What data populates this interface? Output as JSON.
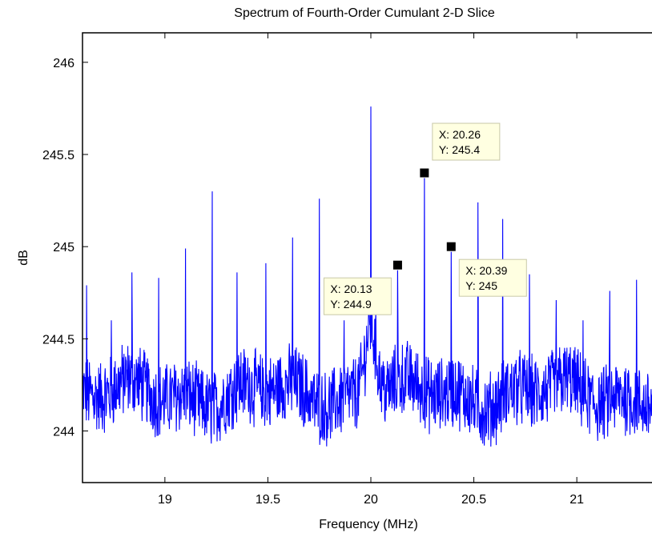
{
  "chart_data": {
    "type": "line",
    "title": "Spectrum of Fourth-Order Cumulant 2-D Slice",
    "xlabel": "Frequency (MHz)",
    "ylabel": "dB",
    "xlim": [
      18.6,
      21.4
    ],
    "ylim": [
      243.72,
      246.16
    ],
    "xticks": [
      19,
      19.5,
      20,
      20.5,
      21
    ],
    "yticks": [
      244,
      244.5,
      245,
      245.5,
      246
    ],
    "series": [
      {
        "color": "#0000ff",
        "baseline": 244.2,
        "noise_amplitude": 0.17,
        "center_bump": {
          "x": 20.0,
          "height": 0.4,
          "width": 0.04
        },
        "peaks": [
          {
            "x": 18.62,
            "y": 244.79
          },
          {
            "x": 18.74,
            "y": 244.6
          },
          {
            "x": 18.84,
            "y": 244.86
          },
          {
            "x": 18.97,
            "y": 244.83
          },
          {
            "x": 19.1,
            "y": 244.99
          },
          {
            "x": 19.23,
            "y": 245.3
          },
          {
            "x": 19.35,
            "y": 244.86
          },
          {
            "x": 19.49,
            "y": 244.91
          },
          {
            "x": 19.62,
            "y": 245.05
          },
          {
            "x": 19.75,
            "y": 245.26
          },
          {
            "x": 19.87,
            "y": 244.6
          },
          {
            "x": 20.0,
            "y": 245.76
          },
          {
            "x": 20.13,
            "y": 244.9
          },
          {
            "x": 20.26,
            "y": 245.4
          },
          {
            "x": 20.39,
            "y": 245.0
          },
          {
            "x": 20.52,
            "y": 245.24
          },
          {
            "x": 20.64,
            "y": 245.15
          },
          {
            "x": 20.77,
            "y": 244.85
          },
          {
            "x": 20.9,
            "y": 244.71
          },
          {
            "x": 21.03,
            "y": 244.6
          },
          {
            "x": 21.16,
            "y": 244.76
          },
          {
            "x": 21.29,
            "y": 244.82
          }
        ]
      }
    ],
    "datatips": [
      {
        "x": 20.26,
        "y": 245.4,
        "x_text": "X: 20.26",
        "y_text": "Y: 245.4"
      },
      {
        "x": 20.13,
        "y": 244.9,
        "x_text": "X: 20.13",
        "y_text": "Y: 244.9"
      },
      {
        "x": 20.39,
        "y": 245.0,
        "x_text": "X: 20.39",
        "y_text": "Y: 245"
      }
    ]
  }
}
